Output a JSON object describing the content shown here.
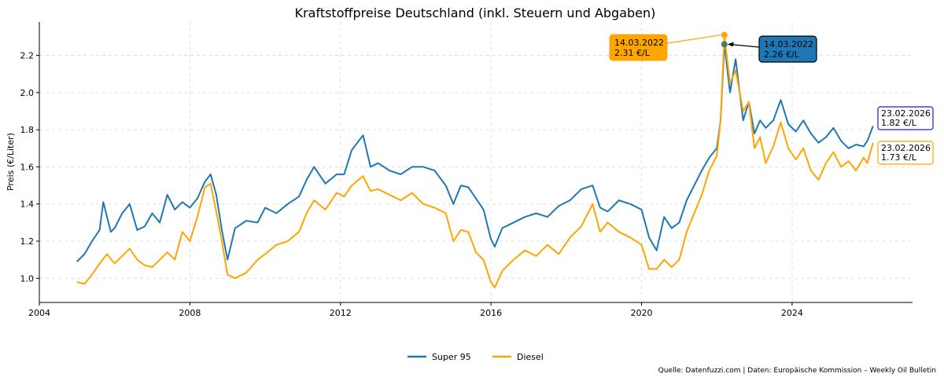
{
  "chart_data": {
    "type": "line",
    "title": "Kraftstoffpreise Deutschland (inkl. Steuern und Abgaben)",
    "xlabel": "",
    "ylabel": "Preis (€/Liter)",
    "xlim": [
      2004,
      2027.2
    ],
    "ylim": [
      0.87,
      2.38
    ],
    "x_ticks": [
      2004,
      2008,
      2012,
      2016,
      2020,
      2024
    ],
    "x_tick_labels": [
      "2004",
      "2008",
      "2012",
      "2016",
      "2020",
      "2024"
    ],
    "y_ticks": [
      1.0,
      1.2,
      1.4,
      1.6,
      1.8,
      2.0,
      2.2
    ],
    "y_tick_labels": [
      "1.0",
      "1.2",
      "1.4",
      "1.6",
      "1.8",
      "2.0",
      "2.2"
    ],
    "grid": true,
    "legend_position": "bottom-center",
    "colors": {
      "super95": "#1f77b4",
      "diesel": "#ffa500",
      "text": "#000000",
      "grid": "#e0e0e0"
    },
    "series": [
      {
        "name": "Super 95",
        "x": [
          2005.0,
          2005.2,
          2005.4,
          2005.6,
          2005.7,
          2005.9,
          2006.0,
          2006.2,
          2006.4,
          2006.6,
          2006.8,
          2007.0,
          2007.2,
          2007.4,
          2007.6,
          2007.8,
          2008.0,
          2008.2,
          2008.4,
          2008.55,
          2008.7,
          2008.85,
          2009.0,
          2009.2,
          2009.5,
          2009.8,
          2010.0,
          2010.3,
          2010.6,
          2010.9,
          2011.1,
          2011.3,
          2011.6,
          2011.9,
          2012.1,
          2012.3,
          2012.6,
          2012.8,
          2013.0,
          2013.3,
          2013.6,
          2013.9,
          2014.2,
          2014.5,
          2014.8,
          2015.0,
          2015.2,
          2015.4,
          2015.6,
          2015.8,
          2016.0,
          2016.1,
          2016.3,
          2016.6,
          2016.9,
          2017.2,
          2017.5,
          2017.8,
          2018.1,
          2018.4,
          2018.7,
          2018.9,
          2019.1,
          2019.4,
          2019.7,
          2020.0,
          2020.2,
          2020.4,
          2020.6,
          2020.8,
          2021.0,
          2021.2,
          2021.4,
          2021.6,
          2021.8,
          2022.0,
          2022.1,
          2022.2,
          2022.35,
          2022.5,
          2022.7,
          2022.85,
          2023.0,
          2023.15,
          2023.3,
          2023.5,
          2023.7,
          2023.9,
          2024.1,
          2024.3,
          2024.5,
          2024.7,
          2024.9,
          2025.1,
          2025.3,
          2025.5,
          2025.7,
          2025.9,
          2026.0,
          2026.15
        ],
        "values": [
          1.09,
          1.13,
          1.2,
          1.26,
          1.41,
          1.25,
          1.27,
          1.35,
          1.4,
          1.26,
          1.28,
          1.35,
          1.3,
          1.45,
          1.37,
          1.41,
          1.38,
          1.43,
          1.52,
          1.56,
          1.45,
          1.26,
          1.1,
          1.27,
          1.31,
          1.3,
          1.38,
          1.35,
          1.4,
          1.44,
          1.53,
          1.6,
          1.51,
          1.56,
          1.56,
          1.69,
          1.77,
          1.6,
          1.62,
          1.58,
          1.56,
          1.6,
          1.6,
          1.58,
          1.5,
          1.4,
          1.5,
          1.49,
          1.43,
          1.37,
          1.21,
          1.17,
          1.27,
          1.3,
          1.33,
          1.35,
          1.33,
          1.39,
          1.42,
          1.48,
          1.5,
          1.38,
          1.36,
          1.42,
          1.4,
          1.37,
          1.22,
          1.15,
          1.33,
          1.27,
          1.3,
          1.42,
          1.5,
          1.58,
          1.65,
          1.7,
          1.85,
          2.26,
          2.0,
          2.18,
          1.85,
          1.95,
          1.78,
          1.85,
          1.81,
          1.85,
          1.96,
          1.83,
          1.79,
          1.85,
          1.78,
          1.73,
          1.76,
          1.81,
          1.74,
          1.7,
          1.72,
          1.71,
          1.74,
          1.82
        ]
      },
      {
        "name": "Diesel",
        "x": [
          2005.0,
          2005.2,
          2005.4,
          2005.6,
          2005.8,
          2006.0,
          2006.2,
          2006.4,
          2006.6,
          2006.8,
          2007.0,
          2007.2,
          2007.4,
          2007.6,
          2007.8,
          2008.0,
          2008.2,
          2008.4,
          2008.55,
          2008.7,
          2008.85,
          2009.0,
          2009.2,
          2009.5,
          2009.8,
          2010.0,
          2010.3,
          2010.6,
          2010.9,
          2011.1,
          2011.3,
          2011.6,
          2011.9,
          2012.1,
          2012.3,
          2012.6,
          2012.8,
          2013.0,
          2013.3,
          2013.6,
          2013.9,
          2014.2,
          2014.5,
          2014.8,
          2015.0,
          2015.2,
          2015.4,
          2015.6,
          2015.8,
          2016.0,
          2016.1,
          2016.3,
          2016.6,
          2016.9,
          2017.2,
          2017.5,
          2017.8,
          2018.1,
          2018.4,
          2018.7,
          2018.9,
          2019.1,
          2019.4,
          2019.7,
          2020.0,
          2020.2,
          2020.4,
          2020.6,
          2020.8,
          2021.0,
          2021.2,
          2021.4,
          2021.6,
          2021.8,
          2022.0,
          2022.1,
          2022.2,
          2022.35,
          2022.5,
          2022.7,
          2022.85,
          2023.0,
          2023.15,
          2023.3,
          2023.5,
          2023.7,
          2023.9,
          2024.1,
          2024.3,
          2024.5,
          2024.7,
          2024.9,
          2025.1,
          2025.3,
          2025.5,
          2025.7,
          2025.9,
          2026.0,
          2026.15
        ],
        "values": [
          0.98,
          0.97,
          1.02,
          1.08,
          1.13,
          1.08,
          1.12,
          1.16,
          1.1,
          1.07,
          1.06,
          1.1,
          1.14,
          1.1,
          1.25,
          1.2,
          1.33,
          1.49,
          1.51,
          1.36,
          1.2,
          1.02,
          1.0,
          1.03,
          1.1,
          1.13,
          1.18,
          1.2,
          1.25,
          1.35,
          1.42,
          1.37,
          1.46,
          1.44,
          1.5,
          1.55,
          1.47,
          1.48,
          1.45,
          1.42,
          1.46,
          1.4,
          1.38,
          1.35,
          1.2,
          1.26,
          1.25,
          1.14,
          1.1,
          0.98,
          0.95,
          1.04,
          1.1,
          1.15,
          1.12,
          1.18,
          1.13,
          1.22,
          1.28,
          1.4,
          1.25,
          1.3,
          1.25,
          1.22,
          1.18,
          1.05,
          1.05,
          1.1,
          1.06,
          1.1,
          1.25,
          1.35,
          1.45,
          1.58,
          1.66,
          1.85,
          2.31,
          2.05,
          2.12,
          1.9,
          1.95,
          1.7,
          1.76,
          1.62,
          1.71,
          1.84,
          1.7,
          1.64,
          1.7,
          1.58,
          1.53,
          1.62,
          1.68,
          1.6,
          1.63,
          1.58,
          1.65,
          1.62,
          1.73
        ]
      }
    ],
    "annotations": {
      "diesel_peak": {
        "date": "14.03.2022",
        "value": "2.31 €/L",
        "x": 2022.2,
        "y": 2.31
      },
      "super_peak": {
        "date": "14.03.2022",
        "value": "2.26 €/L",
        "x": 2022.2,
        "y": 2.26
      },
      "super_last": {
        "date": "23.02.2026",
        "value": "1.82 €/L"
      },
      "diesel_last": {
        "date": "23.02.2026",
        "value": "1.73 €/L"
      }
    },
    "source": "Quelle: Datenfuzzi.com | Daten: Europäische Kommission – Weekly Oil Bulletin"
  }
}
